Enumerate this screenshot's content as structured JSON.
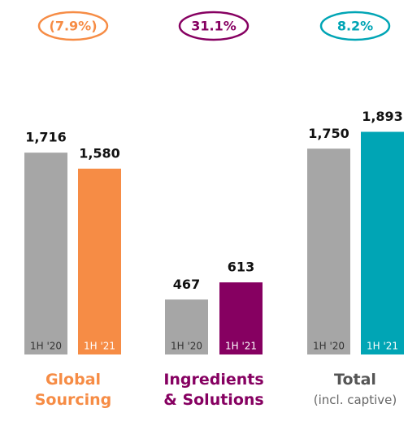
{
  "chart_data": {
    "type": "bar",
    "categories": [
      "Global Sourcing",
      "Ingredients & Solutions",
      "Total"
    ],
    "category_colors": [
      "#f68c45",
      "#860061",
      "#555555"
    ],
    "annotations": [
      "(incl. captive)"
    ],
    "growth_labels": [
      "(7.9%)",
      "31.1%",
      "8.2%"
    ],
    "series": [
      {
        "name": "1H '20",
        "color": "#a6a6a6",
        "values": [
          1716,
          467,
          1750
        ],
        "value_labels": [
          "1,716",
          "467",
          "1,750"
        ]
      },
      {
        "name": "1H '21",
        "colors": [
          "#f68c45",
          "#860061",
          "#00a5b5"
        ],
        "values": [
          1580,
          613,
          1893
        ],
        "value_labels": [
          "1,580",
          "613",
          "1,893"
        ]
      }
    ]
  }
}
